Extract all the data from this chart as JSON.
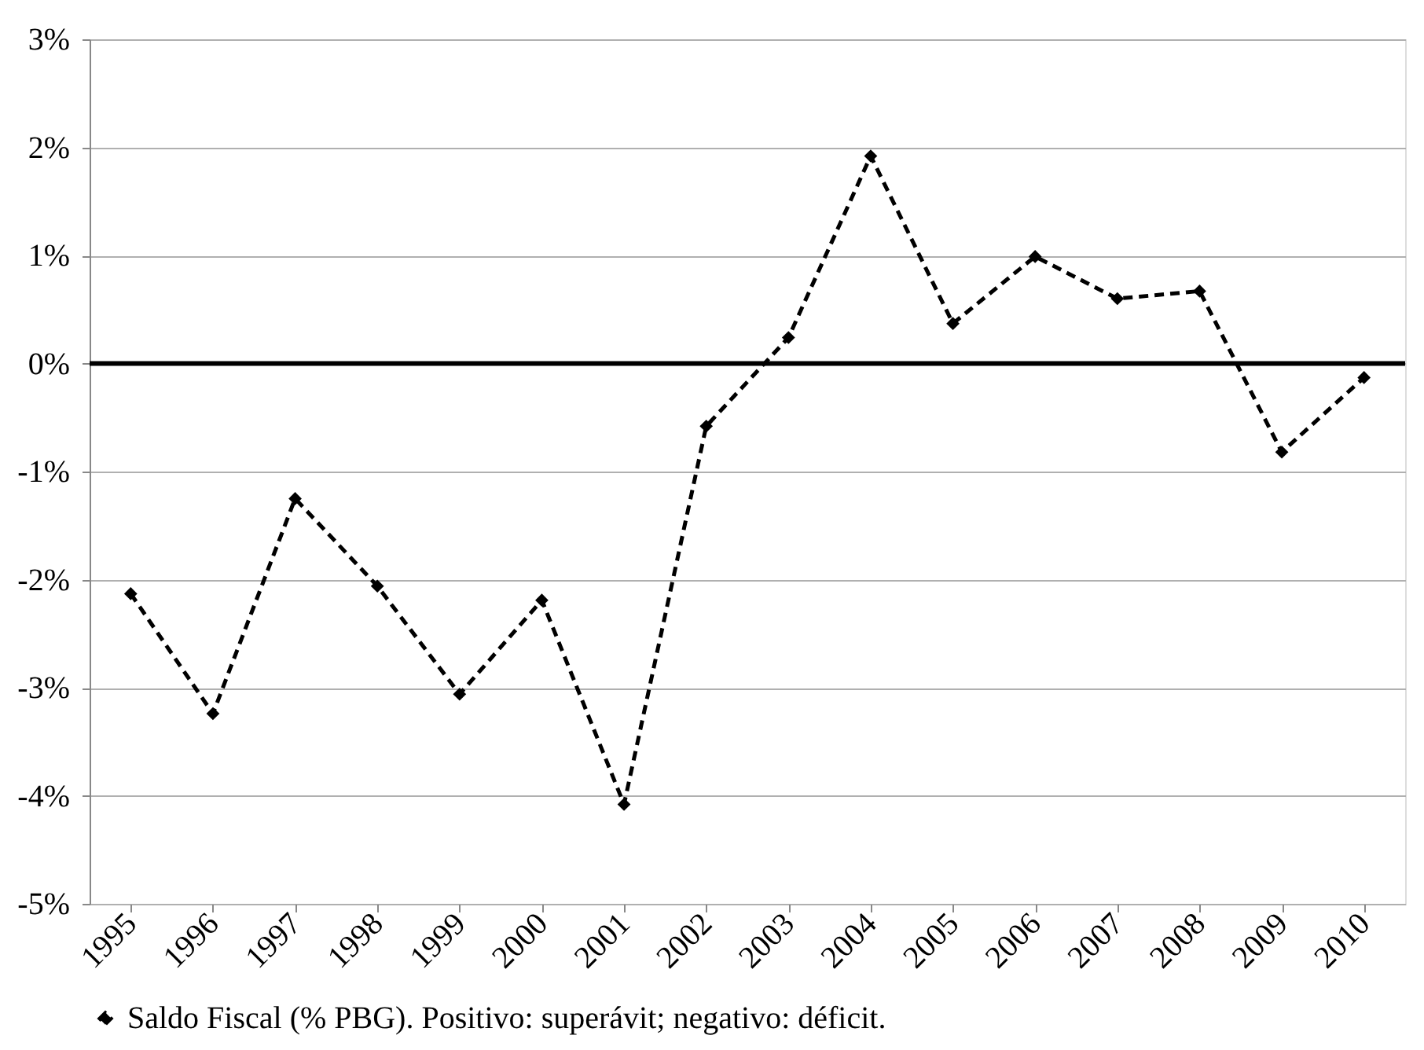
{
  "chart_data": {
    "type": "line",
    "categories": [
      "1995",
      "1996",
      "1997",
      "1998",
      "1999",
      "2000",
      "2001",
      "2002",
      "2003",
      "2004",
      "2005",
      "2006",
      "2007",
      "2008",
      "2009",
      "2010"
    ],
    "series": [
      {
        "name": "Saldo Fiscal (% PBG). Positivo: superávit; negativo: déficit.",
        "color": "#000000",
        "values": [
          -2.13,
          -3.24,
          -1.25,
          -2.06,
          -3.06,
          -2.19,
          -4.08,
          -0.58,
          0.24,
          1.92,
          0.37,
          0.99,
          0.6,
          0.67,
          -0.82,
          -0.13
        ]
      }
    ],
    "ylim": [
      -5,
      3
    ],
    "yticks": [
      {
        "value": -5,
        "label": "-5%"
      },
      {
        "value": -4,
        "label": "-4%"
      },
      {
        "value": -3,
        "label": "-3%"
      },
      {
        "value": -2,
        "label": "-2%"
      },
      {
        "value": -1,
        "label": "-1%"
      },
      {
        "value": 0,
        "label": "0%"
      },
      {
        "value": 1,
        "label": "1%"
      },
      {
        "value": 2,
        "label": "2%"
      },
      {
        "value": 3,
        "label": "3%"
      }
    ],
    "ref_lines": [
      {
        "axis": "y",
        "value": 0,
        "color": "#000000"
      }
    ],
    "grid": "y",
    "legend": "bottom",
    "marker": "diamond",
    "line_style": "dashed"
  }
}
